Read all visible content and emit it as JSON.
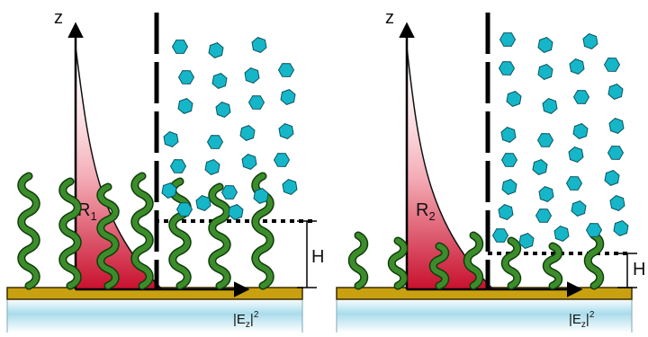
{
  "panels": [
    {
      "axis_z": "z",
      "reflectance_label": {
        "main": "R",
        "sub": "1"
      },
      "intensity_label": {
        "main": "|E",
        "sub": "z",
        "close": "|",
        "sup": "2"
      },
      "height_label": "H"
    },
    {
      "axis_z": "z",
      "reflectance_label": {
        "main": "R",
        "sub": "2"
      },
      "intensity_label": {
        "main": "|E",
        "sub": "z",
        "close": "|",
        "sup": "2"
      },
      "height_label": "H"
    }
  ],
  "colors": {
    "polymer_chain": "#3c8c2c",
    "polymer_outline": "#0f3d0a",
    "particle": "#16b6c9",
    "particle_outline": "#0a5660",
    "substrate": "#c9a010",
    "field_profile": "#c8102e",
    "glass": "#bfe6f2"
  }
}
